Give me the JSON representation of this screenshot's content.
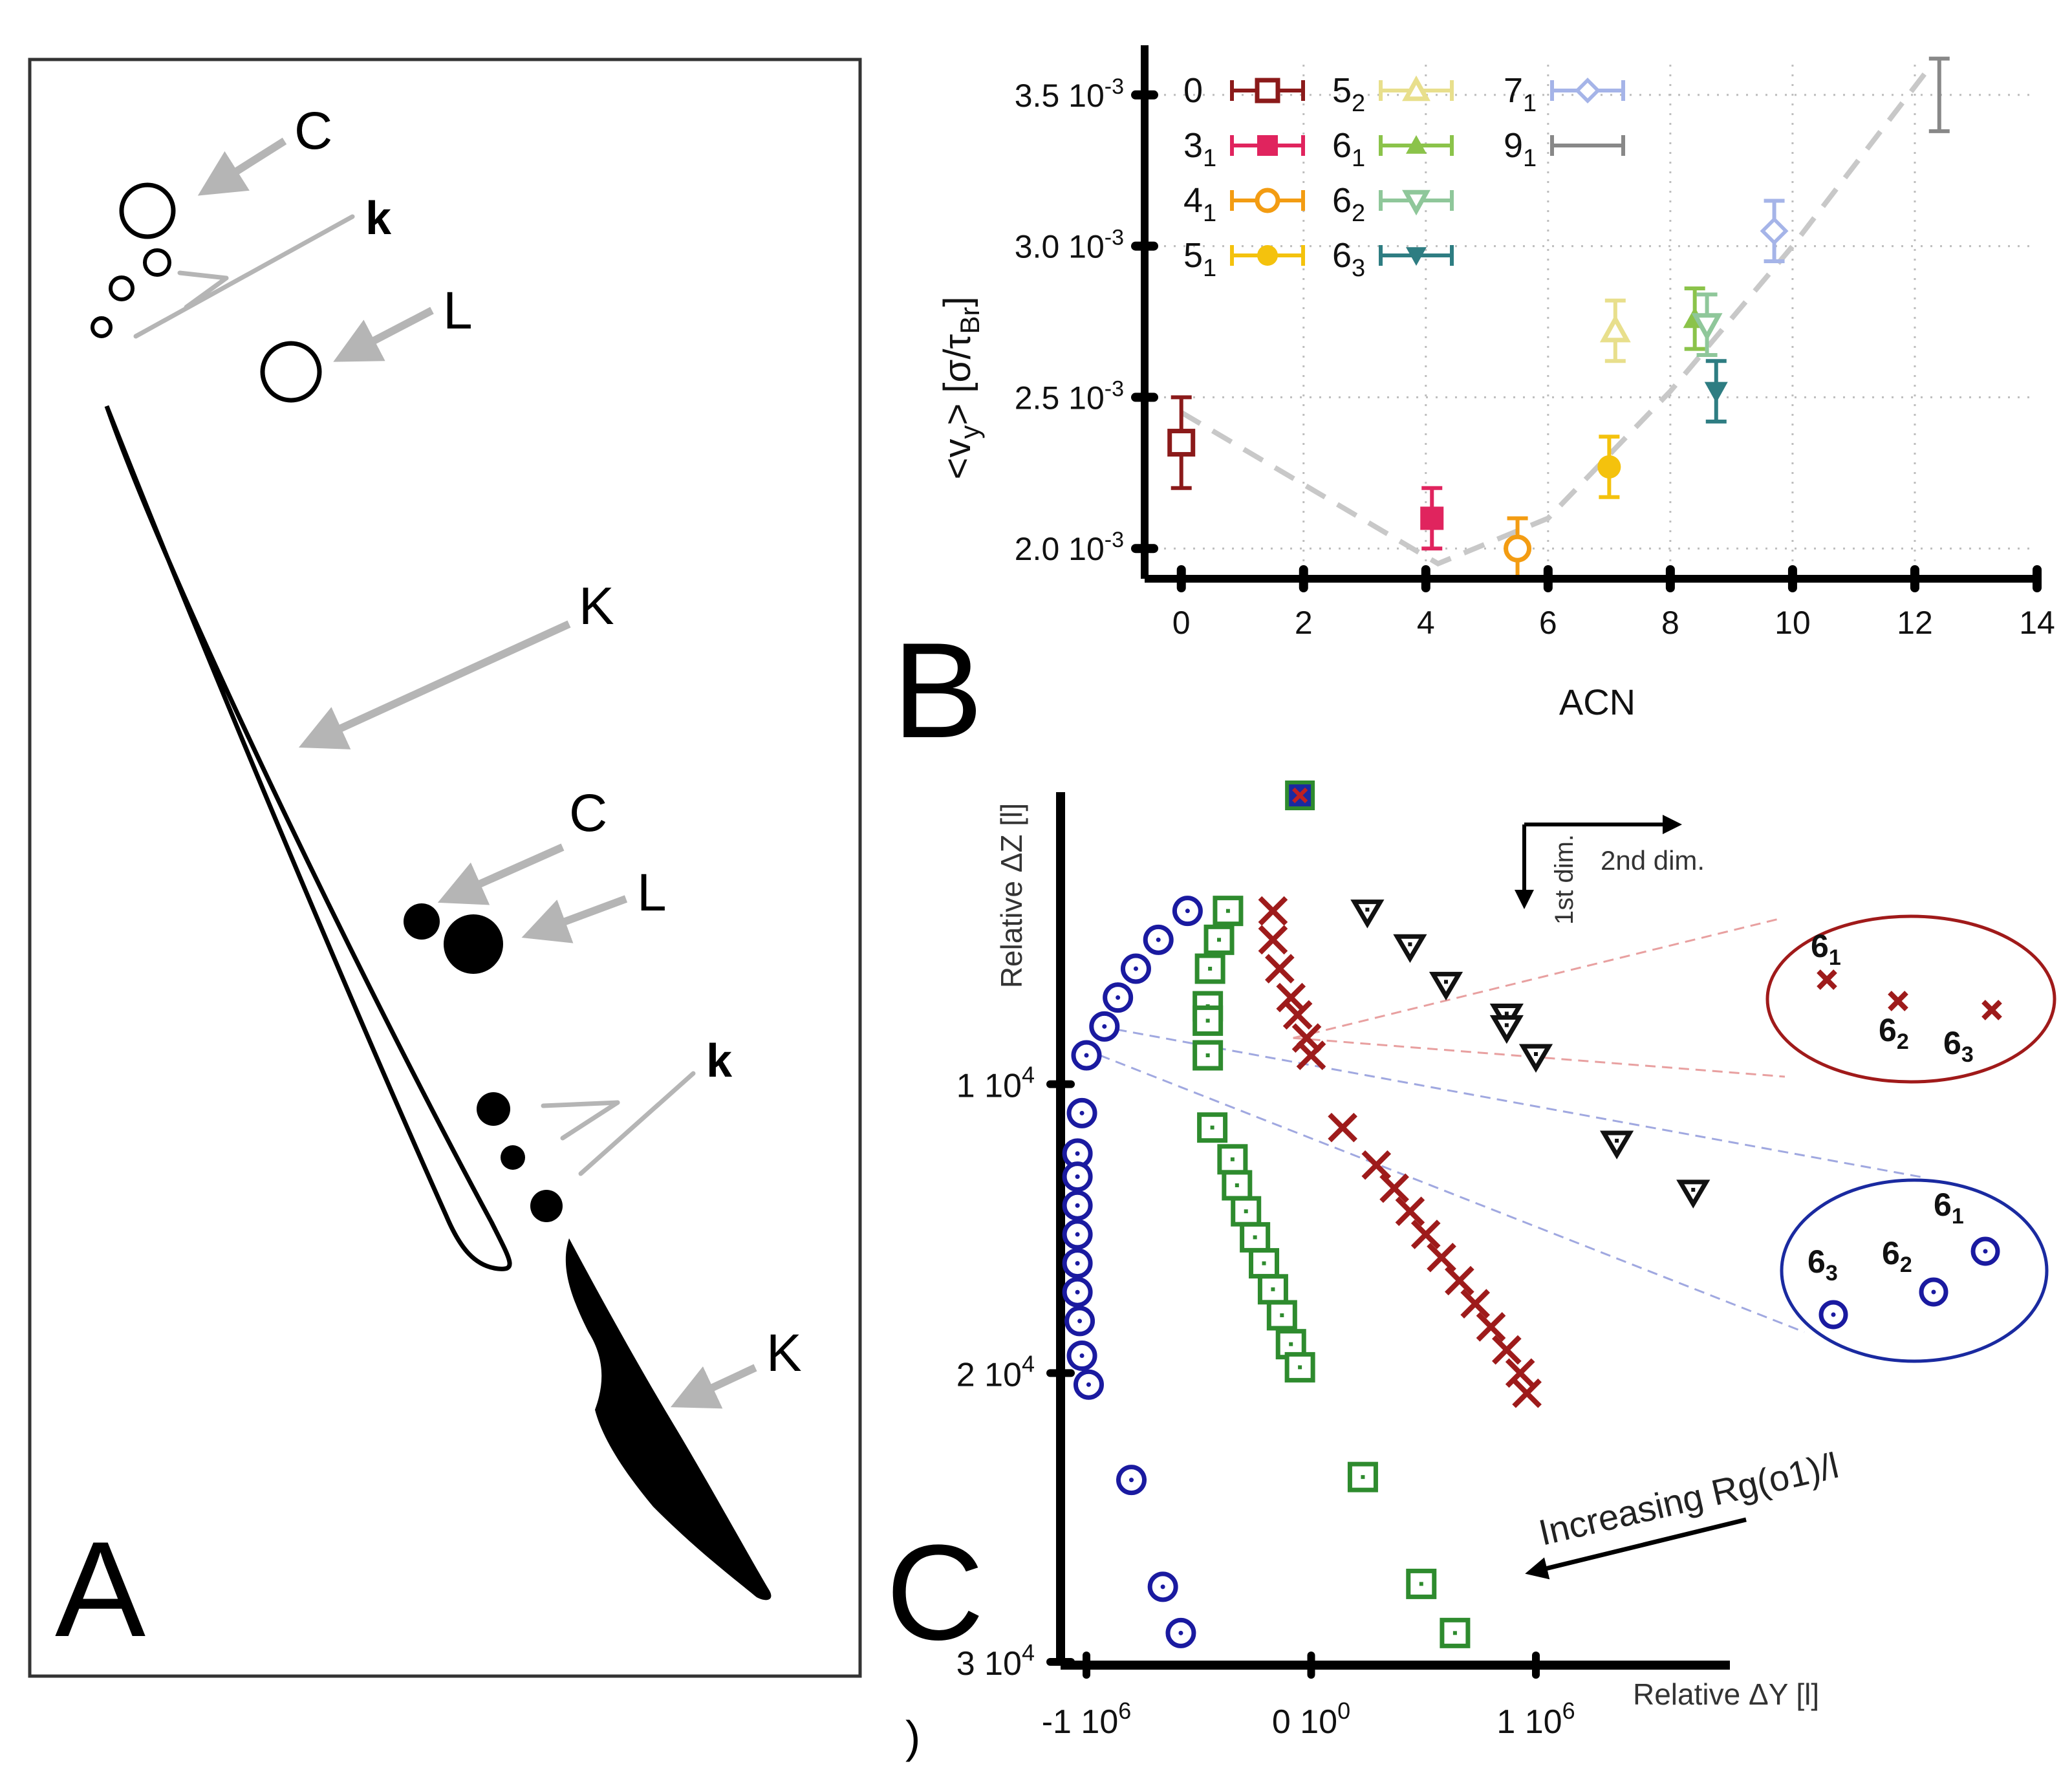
{
  "panel_a": {
    "panel_label": "A",
    "labels": {
      "C_top": "C",
      "k_top": "k",
      "L_top": "L",
      "K_upper": "K",
      "C_mid": "C",
      "L_mid": "L",
      "k_bottom": "k",
      "K_lower": "K"
    },
    "colors": {
      "arrow": "#b5b5b5",
      "ink": "#000000",
      "frame": "#333333"
    }
  },
  "panel_b": {
    "panel_label": "B",
    "chart_data": {
      "type": "scatter",
      "title": "",
      "xlabel": "ACN",
      "ylabel_parts": [
        "<v",
        "y",
        "> [σ/τ",
        "Br",
        "]"
      ],
      "xlim": [
        -0.6,
        14
      ],
      "ylim": [
        1.9,
        3.6
      ],
      "y_unit_suffix": "10",
      "y_unit_exponent": "-3",
      "x_ticks": [
        "0",
        "2",
        "4",
        "6",
        "8",
        "10",
        "12",
        "14"
      ],
      "y_ticks": [
        {
          "value": 2.0,
          "mantissa": "2.0"
        },
        {
          "value": 2.5,
          "mantissa": "2.5"
        },
        {
          "value": 3.0,
          "mantissa": "3.0"
        },
        {
          "value": 3.5,
          "mantissa": "3.5"
        }
      ],
      "grid": true,
      "legend_position": "top-left",
      "series": [
        {
          "name": "0",
          "base": "0",
          "sub": "",
          "x": 0.0,
          "y": 2.35,
          "err": 0.15,
          "marker": "square-open",
          "color": "#8b1a1a"
        },
        {
          "name": "3_1",
          "base": "3",
          "sub": "1",
          "x": 4.1,
          "y": 2.1,
          "err": 0.1,
          "marker": "square-filled",
          "color": "#e0245e"
        },
        {
          "name": "4_1",
          "base": "4",
          "sub": "1",
          "x": 5.5,
          "y": 2.0,
          "err": 0.1,
          "marker": "circle-open",
          "color": "#f39c12"
        },
        {
          "name": "5_1",
          "base": "5",
          "sub": "1",
          "x": 7.0,
          "y": 2.27,
          "err": 0.1,
          "marker": "circle-filled",
          "color": "#f4c20d"
        },
        {
          "name": "5_2",
          "base": "5",
          "sub": "2",
          "x": 7.1,
          "y": 2.72,
          "err": 0.1,
          "marker": "triangle-up-open",
          "color": "#e8df8c"
        },
        {
          "name": "6_1",
          "base": "6",
          "sub": "1",
          "x": 8.4,
          "y": 2.76,
          "err": 0.1,
          "marker": "triangle-up-filled",
          "color": "#8bc34a"
        },
        {
          "name": "6_2",
          "base": "6",
          "sub": "2",
          "x": 8.6,
          "y": 2.74,
          "err": 0.1,
          "marker": "triangle-down-open",
          "color": "#8fc79a"
        },
        {
          "name": "6_3",
          "base": "6",
          "sub": "3",
          "x": 8.75,
          "y": 2.52,
          "err": 0.1,
          "marker": "triangle-down-filled",
          "color": "#2e7d82"
        },
        {
          "name": "7_1",
          "base": "7",
          "sub": "1",
          "x": 9.7,
          "y": 3.05,
          "err": 0.1,
          "marker": "diamond-open",
          "color": "#a5b4e8"
        },
        {
          "name": "9_1",
          "base": "9",
          "sub": "1",
          "x": 12.4,
          "y": 3.5,
          "err": 0.12,
          "marker": "plus",
          "color": "#888888"
        }
      ],
      "trend_line": {
        "x": [
          0,
          4.2,
          6.0,
          8.0,
          10.0,
          12.2
        ],
        "y": [
          2.45,
          1.95,
          2.1,
          2.52,
          3.0,
          3.58
        ],
        "color": "#c8c8c8"
      }
    }
  },
  "panel_c": {
    "panel_label": "C",
    "chart_data": {
      "type": "scatter",
      "xlabel": "Relative ΔY [l]",
      "ylabel": "Relative ΔZ [l]",
      "x_ticks": [
        {
          "value": -1000000,
          "base": "-1 10",
          "exp": "6"
        },
        {
          "value": 0,
          "base": "0 10",
          "exp": "0"
        },
        {
          "value": 1000000,
          "base": "1 10",
          "exp": "6"
        }
      ],
      "y_ticks": [
        {
          "value": 10000,
          "base": "1 10",
          "exp": "4"
        },
        {
          "value": 20000,
          "base": "2 10",
          "exp": "4"
        },
        {
          "value": 30000,
          "base": "3 10",
          "exp": "4"
        }
      ],
      "y_direction": "down",
      "series": [
        {
          "name": "circles",
          "marker": "dotted-circle",
          "color": "#1a1aa0",
          "x": [
            -550000,
            -680000,
            -780000,
            -860000,
            -920000,
            -1000000,
            -1020000,
            -1040000,
            -1040000,
            -1040000,
            -1040000,
            -1040000,
            -1040000,
            -1030000,
            -1020000,
            -990000,
            -800000,
            -660000,
            -580000
          ],
          "y": [
            4000,
            5000,
            6000,
            7000,
            8000,
            9000,
            11000,
            12400,
            13200,
            14200,
            15200,
            16200,
            17200,
            18200,
            19400,
            20400,
            23700,
            27400,
            29000
          ]
        },
        {
          "name": "squares",
          "marker": "dotted-square",
          "color": "#2e8b2e",
          "x": [
            -370000,
            -410000,
            -450000,
            -460000,
            -460000,
            -460000,
            -440000,
            -350000,
            -330000,
            -290000,
            -250000,
            -210000,
            -170000,
            -130000,
            -90000,
            -50000,
            230000,
            490000,
            640000
          ],
          "y": [
            4000,
            5000,
            6000,
            7300,
            7800,
            9000,
            11500,
            12600,
            13500,
            14400,
            15300,
            16200,
            17100,
            18000,
            19000,
            19800,
            23600,
            27300,
            29000
          ]
        },
        {
          "name": "crosses",
          "marker": "cross",
          "color": "#9e1b1b",
          "x": [
            -170000,
            -170000,
            -140000,
            -90000,
            -60000,
            -20000,
            0,
            140000,
            290000,
            370000,
            440000,
            510000,
            580000,
            660000,
            730000,
            800000,
            870000,
            930000,
            960000
          ],
          "y": [
            4000,
            5000,
            6000,
            7000,
            7600,
            8400,
            9000,
            11500,
            12800,
            13600,
            14400,
            15200,
            16000,
            16800,
            17600,
            18400,
            19200,
            20000,
            20700
          ]
        },
        {
          "name": "triangles",
          "marker": "dotted-triangle-down",
          "color": "#111111",
          "x": [
            250000,
            440000,
            600000,
            870000,
            870000,
            1000000,
            1360000,
            1700000
          ],
          "y": [
            4000,
            5200,
            6500,
            7600,
            8000,
            9000,
            12000,
            13700
          ]
        },
        {
          "name": "single_point",
          "marker": "square-cross",
          "color": "#2e8b2e",
          "x": [
            -50000
          ],
          "y": [
            0
          ]
        }
      ],
      "annotations": {
        "arrow_h_label": "2nd dim.",
        "arrow_v_label": "1st dim.",
        "increasing_label": "Increasing Rg(o1)/l",
        "red_inset": [
          {
            "base": "6",
            "sub": "1"
          },
          {
            "base": "6",
            "sub": "2"
          },
          {
            "base": "6",
            "sub": "3"
          }
        ],
        "blue_inset": [
          {
            "base": "6",
            "sub": "1"
          },
          {
            "base": "6",
            "sub": "2"
          },
          {
            "base": "6",
            "sub": "3"
          }
        ],
        "stray_mark": ")"
      },
      "colors": {
        "red_ellipse": "#a01a1a",
        "blue_ellipse": "#1a2aa0",
        "red_dash": "#e8a0a0",
        "blue_dash": "#a0a8e0"
      }
    }
  }
}
